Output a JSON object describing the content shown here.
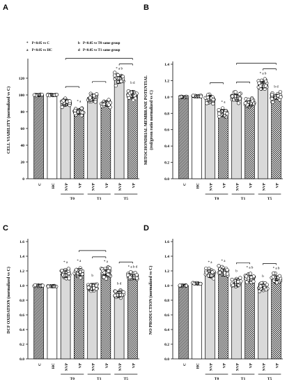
{
  "legend": {
    "items": [
      {
        "key": "*",
        "text": "P<0.05 vs C"
      },
      {
        "key": "b",
        "text": "P<0.05 vs T0 same group"
      },
      {
        "key": "a",
        "text": "P<0.05 vs HC"
      },
      {
        "key": "d",
        "text": "P<0.05 vs T1 same group"
      }
    ]
  },
  "colors": {
    "C": "#9a9a9a",
    "HC": "#ffffff",
    "NVP": "#d9d9d9",
    "VP": "#bdbdbd",
    "outline": "#000000",
    "point_fill": "#ffffff"
  },
  "chart_data": [
    {
      "panel": "A",
      "type": "bar",
      "ylabel": "CELL VIABILITY (normalized vs C)",
      "ylim": [
        0,
        140
      ],
      "yticks": [
        0,
        20,
        40,
        60,
        80,
        100,
        120
      ],
      "categories": [
        "C",
        "HC",
        "NVP",
        "VP",
        "NVP",
        "VP",
        "NVP",
        "VP"
      ],
      "groups": [
        "T0",
        "T1",
        "T5"
      ],
      "values": [
        100,
        100,
        91,
        80,
        97,
        90,
        118,
        101
      ],
      "errors": [
        1,
        1,
        4,
        3,
        4,
        3,
        4,
        4
      ],
      "annotations": [
        "",
        "",
        "",
        "* a",
        "",
        "",
        "* a b",
        "b d"
      ],
      "brackets": [
        2,
        4,
        6
      ],
      "spans": [
        [
          2,
          7
        ]
      ],
      "grid": false,
      "legend_position": "top-left"
    },
    {
      "panel": "B",
      "type": "bar",
      "ylabel": "MITOCHONDRIAL MEMBRANE POTENTIAL (red/green ratio normalized vs C)",
      "ylim": [
        0,
        1.4
      ],
      "yticks": [
        0.0,
        0.2,
        0.4,
        0.6,
        0.8,
        1.0,
        1.2,
        1.4
      ],
      "categories": [
        "C",
        "HC",
        "NVP",
        "VP",
        "NVP",
        "VP",
        "NVP",
        "VP"
      ],
      "groups": [
        "T0",
        "T1",
        "T5"
      ],
      "values": [
        1.0,
        1.01,
        0.98,
        0.8,
        1.0,
        0.92,
        1.15,
        1.0
      ],
      "errors": [
        0.01,
        0.01,
        0.04,
        0.04,
        0.03,
        0.03,
        0.04,
        0.03
      ],
      "annotations": [
        "",
        "",
        "",
        "* a",
        "",
        "",
        "* a b",
        "b d"
      ],
      "brackets": [
        2,
        4,
        6
      ],
      "spans": [
        [
          4,
          7
        ]
      ],
      "grid": false
    },
    {
      "panel": "C",
      "type": "bar",
      "ylabel": "DCF OXIDATION (normalized vs C)",
      "ylim": [
        0,
        1.6
      ],
      "yticks": [
        0.0,
        0.2,
        0.4,
        0.6,
        0.8,
        1.0,
        1.2,
        1.4,
        1.6
      ],
      "categories": [
        "C",
        "HC",
        "NVP",
        "VP",
        "NVP",
        "VP",
        "NVP",
        "VP"
      ],
      "groups": [
        "T0",
        "T1",
        "T5"
      ],
      "values": [
        1.0,
        0.99,
        1.16,
        1.18,
        0.98,
        1.18,
        0.88,
        1.12
      ],
      "errors": [
        0.01,
        0.01,
        0.05,
        0.05,
        0.05,
        0.04,
        0.04,
        0.03
      ],
      "annotations": [
        "",
        "",
        "* a",
        "* a",
        "b",
        "* a",
        "b d",
        "* a b d"
      ],
      "brackets": [
        4,
        6
      ],
      "spans": [
        [
          3,
          5
        ]
      ],
      "grid": false
    },
    {
      "panel": "D",
      "type": "bar",
      "ylabel": "NO PRODUCTION (normalized vs C)",
      "ylim": [
        0,
        1.6
      ],
      "yticks": [
        0.0,
        0.2,
        0.4,
        0.6,
        0.8,
        1.0,
        1.2,
        1.4,
        1.6
      ],
      "categories": [
        "C",
        "HC",
        "NVP",
        "VP",
        "NVP",
        "VP",
        "NVP",
        "VP"
      ],
      "groups": [
        "T0",
        "T1",
        "T5"
      ],
      "values": [
        1.0,
        1.03,
        1.16,
        1.18,
        1.04,
        1.1,
        0.98,
        1.1
      ],
      "errors": [
        0.01,
        0.01,
        0.05,
        0.05,
        0.05,
        0.04,
        0.04,
        0.03
      ],
      "annotations": [
        "",
        "",
        "* a",
        "* a",
        "b",
        "* a b",
        "b",
        "* a b"
      ],
      "brackets": [
        4,
        6
      ],
      "spans": [],
      "grid": false
    }
  ]
}
